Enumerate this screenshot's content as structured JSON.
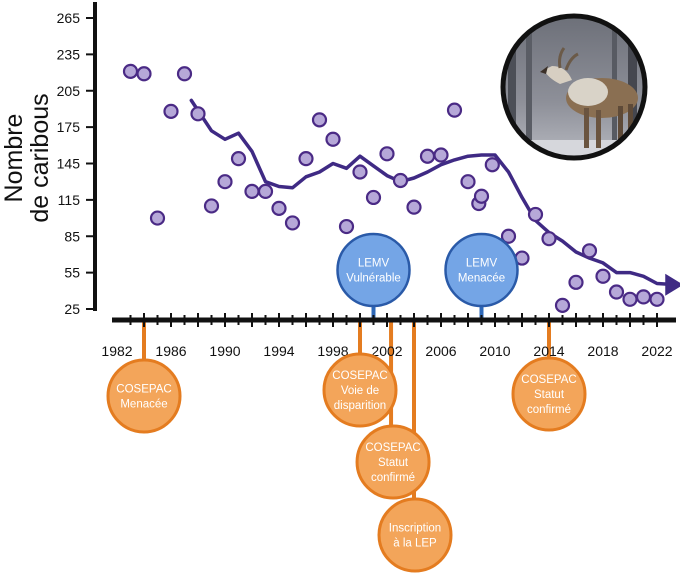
{
  "chart_data": {
    "type": "scatter",
    "ylabel": [
      "Nombre",
      "de caribous"
    ],
    "ylim": [
      25,
      265
    ],
    "yticks": [
      25,
      55,
      85,
      115,
      145,
      175,
      205,
      235,
      265
    ],
    "xlim": [
      1982,
      2023
    ],
    "xticks": [
      1982,
      1986,
      1990,
      1994,
      1998,
      2002,
      2006,
      2010,
      2014,
      2018,
      2022
    ],
    "grid": false,
    "colors": {
      "point_fill": "#b6a8d8",
      "point_stroke": "#4a2a85",
      "trend": "#3f2a84",
      "blue": "#74a5e6",
      "orange": "#f3a55a",
      "orange_line": "#e47c20"
    },
    "series": [
      {
        "points": [
          {
            "x": 1983,
            "y": 221
          },
          {
            "x": 1984,
            "y": 219
          },
          {
            "x": 1985,
            "y": 100
          },
          {
            "x": 1986,
            "y": 188
          },
          {
            "x": 1987,
            "y": 219
          },
          {
            "x": 1988,
            "y": 186
          },
          {
            "x": 1989,
            "y": 110
          },
          {
            "x": 1990,
            "y": 130
          },
          {
            "x": 1991,
            "y": 149
          },
          {
            "x": 1992,
            "y": 122
          },
          {
            "x": 1993,
            "y": 122
          },
          {
            "x": 1994,
            "y": 108
          },
          {
            "x": 1995,
            "y": 96
          },
          {
            "x": 1996,
            "y": 149
          },
          {
            "x": 1997,
            "y": 181
          },
          {
            "x": 1998,
            "y": 165
          },
          {
            "x": 1999,
            "y": 93
          },
          {
            "x": 2000,
            "y": 138
          },
          {
            "x": 2001,
            "y": 117
          },
          {
            "x": 2002,
            "y": 153
          },
          {
            "x": 2003,
            "y": 131
          },
          {
            "x": 2004,
            "y": 109
          },
          {
            "x": 2005,
            "y": 151
          },
          {
            "x": 2006,
            "y": 152
          },
          {
            "x": 2007,
            "y": 189
          },
          {
            "x": 2008,
            "y": 130
          },
          {
            "x": 2008.8,
            "y": 112
          },
          {
            "x": 2009,
            "y": 118
          },
          {
            "x": 2009.8,
            "y": 144
          },
          {
            "x": 2011,
            "y": 85
          },
          {
            "x": 2012,
            "y": 67
          },
          {
            "x": 2013,
            "y": 103
          },
          {
            "x": 2014,
            "y": 83
          },
          {
            "x": 2015,
            "y": 28
          },
          {
            "x": 2016,
            "y": 47
          },
          {
            "x": 2017,
            "y": 73
          },
          {
            "x": 2018,
            "y": 52
          },
          {
            "x": 2019,
            "y": 39
          },
          {
            "x": 2020,
            "y": 33
          },
          {
            "x": 2021,
            "y": 35
          },
          {
            "x": 2022,
            "y": 33
          }
        ],
        "trend": [
          {
            "x": 1987.5,
            "y": 197
          },
          {
            "x": 1989,
            "y": 172
          },
          {
            "x": 1990,
            "y": 165
          },
          {
            "x": 1991,
            "y": 170
          },
          {
            "x": 1992,
            "y": 155
          },
          {
            "x": 1993,
            "y": 130
          },
          {
            "x": 1994,
            "y": 126
          },
          {
            "x": 1995,
            "y": 125
          },
          {
            "x": 1996,
            "y": 134
          },
          {
            "x": 1997,
            "y": 138
          },
          {
            "x": 1998,
            "y": 145
          },
          {
            "x": 1999,
            "y": 141
          },
          {
            "x": 2000,
            "y": 151
          },
          {
            "x": 2001,
            "y": 143
          },
          {
            "x": 2002,
            "y": 135
          },
          {
            "x": 2003,
            "y": 130
          },
          {
            "x": 2004,
            "y": 133
          },
          {
            "x": 2005,
            "y": 138
          },
          {
            "x": 2006,
            "y": 144
          },
          {
            "x": 2007,
            "y": 148
          },
          {
            "x": 2008,
            "y": 151
          },
          {
            "x": 2009,
            "y": 152
          },
          {
            "x": 2010,
            "y": 152
          },
          {
            "x": 2011,
            "y": 138
          },
          {
            "x": 2012,
            "y": 117
          },
          {
            "x": 2013,
            "y": 98
          },
          {
            "x": 2014,
            "y": 88
          },
          {
            "x": 2015,
            "y": 81
          },
          {
            "x": 2016,
            "y": 72
          },
          {
            "x": 2017,
            "y": 67
          },
          {
            "x": 2018,
            "y": 63
          },
          {
            "x": 2019,
            "y": 55
          },
          {
            "x": 2020,
            "y": 55
          },
          {
            "x": 2021,
            "y": 52
          },
          {
            "x": 2022,
            "y": 46
          }
        ]
      }
    ],
    "annotations": {
      "lemv": [
        {
          "year": 2001,
          "lines": [
            "LEMV",
            "Vulnérable"
          ]
        },
        {
          "year": 2009,
          "lines": [
            "LEMV",
            "Menacée"
          ]
        }
      ],
      "cosepac": [
        {
          "year": 1984,
          "lines": [
            "COSEPAC",
            "Menacée"
          ]
        },
        {
          "year": 2000,
          "lines": [
            "COSEPAC",
            "Voie de",
            "disparition"
          ]
        },
        {
          "year": 2002.3,
          "lines": [
            "COSEPAC",
            "Statut",
            "confirmé"
          ]
        },
        {
          "year": 2004,
          "lines": [
            "Inscription",
            "à la LEP"
          ]
        },
        {
          "year": 2014,
          "lines": [
            "COSEPAC",
            "Statut",
            "confirmé"
          ]
        }
      ]
    }
  }
}
